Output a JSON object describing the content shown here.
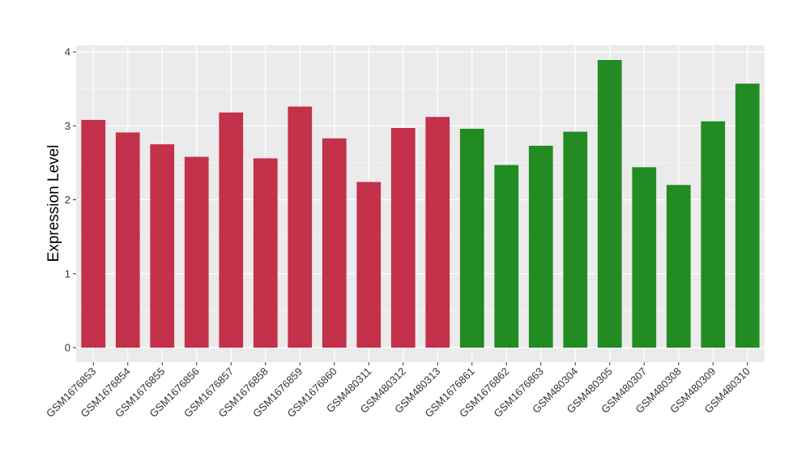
{
  "chart_data": {
    "type": "bar",
    "title": "",
    "xlabel": "",
    "ylabel": "Expression Level",
    "ylim": [
      0,
      4.1
    ],
    "yticks": [
      0,
      1,
      2,
      3,
      4
    ],
    "grid": true,
    "background": "#ebebeb",
    "gridColor": "#ffffff",
    "categories": [
      "GSM1676853",
      "GSM1676854",
      "GSM1676855",
      "GSM1676856",
      "GSM1676857",
      "GSM1676858",
      "GSM1676859",
      "GSM1676860",
      "GSM480311",
      "GSM480312",
      "GSM480313",
      "GSM1676861",
      "GSM1676862",
      "GSM1676863",
      "GSM480304",
      "GSM480305",
      "GSM480307",
      "GSM480308",
      "GSM480309",
      "GSM480310"
    ],
    "values": [
      3.08,
      2.91,
      2.75,
      2.58,
      3.18,
      2.56,
      3.26,
      2.83,
      2.24,
      2.97,
      3.12,
      2.96,
      2.47,
      2.73,
      2.92,
      3.89,
      2.44,
      2.2,
      3.06,
      3.57
    ],
    "colors": [
      "#c3314a",
      "#c3314a",
      "#c3314a",
      "#c3314a",
      "#c3314a",
      "#c3314a",
      "#c3314a",
      "#c3314a",
      "#c3314a",
      "#c3314a",
      "#c3314a",
      "#228b22",
      "#228b22",
      "#228b22",
      "#228b22",
      "#228b22",
      "#228b22",
      "#228b22",
      "#228b22",
      "#228b22"
    ]
  }
}
